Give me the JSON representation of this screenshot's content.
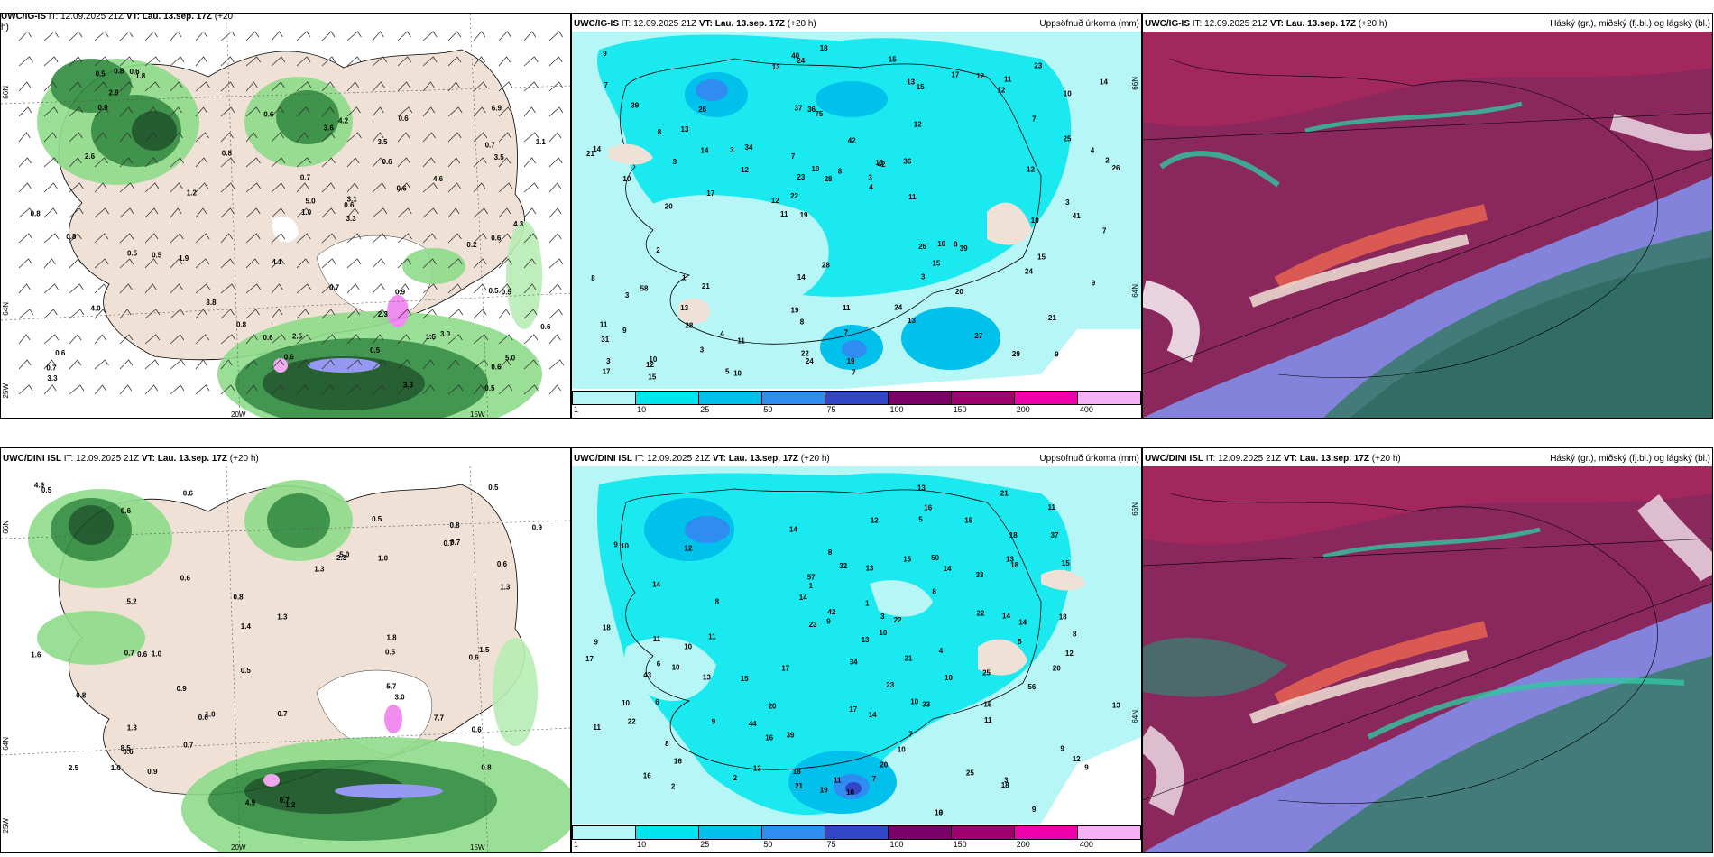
{
  "precip_panels": [
    {
      "model": "UWC/IG-IS",
      "it": "IT: 12.09.2025 21Z",
      "vt_label": "VT:",
      "vt": "Lau. 13.sep. 17Z",
      "lead": "(+20 h)",
      "right": "Uppsöfnuð úrkoma (mm)"
    },
    {
      "model": "UWC/DINI ISL",
      "it": "IT: 12.09.2025 21Z",
      "vt_label": "VT:",
      "vt": "Lau. 13.sep. 17Z",
      "lead": "(+20 h)",
      "right": "Uppsöfnuð úrkoma (mm)"
    }
  ],
  "cloud_panels": [
    {
      "model": "UWC/IG-IS",
      "it": "IT: 12.09.2025 21Z",
      "vt_label": "VT:",
      "vt": "Lau. 13.sep. 17Z",
      "lead": "(+20 h)",
      "right": "Háský (gr.), miðský (fj.bl.) og lágský (bl.)"
    },
    {
      "model": "UWC/DINI ISL",
      "it": "IT: 12.09.2025 21Z",
      "vt_label": "VT:",
      "vt": "Lau. 13.sep. 17Z",
      "lead": "(+20 h)",
      "right": "Háský (gr.), miðský (fj.bl.) og lágský (bl.)"
    }
  ],
  "wind_panels": [
    {
      "model": "UWC/IG-IS",
      "it": "IT: 12.09.2025 21Z",
      "vt_label": "VT:",
      "vt": "Lau. 13.sep. 17Z",
      "lead": "(+20",
      "lead2": "h)"
    },
    {
      "model": "UWC/DINI ISL",
      "it": "IT: 12.09.2025 21Z",
      "vt_label": "VT:",
      "vt": "Lau. 13.sep. 17Z",
      "lead": "(+20 h)"
    }
  ],
  "colorbar": {
    "ticks": [
      "1",
      "10",
      "25",
      "50",
      "75",
      "100",
      "150",
      "200",
      "400"
    ],
    "colors": [
      "#b7f6f6",
      "#00e6ee",
      "#00c0ec",
      "#2f8cf0",
      "#3346c8",
      "#7b0067",
      "#a0006f",
      "#ee00aa",
      "#f6b0f6"
    ]
  },
  "axis_labels": {
    "lat66": "66N",
    "lat64": "64N",
    "lon20": "20W",
    "lon15": "15W",
    "lon25": "25W"
  },
  "precip_top_values": [
    "9",
    "10",
    "10",
    "11",
    "12",
    "10",
    "37",
    "42",
    "58",
    "34",
    "31",
    "28",
    "36",
    "42",
    "39",
    "39",
    "24",
    "26",
    "26",
    "25",
    "22",
    "19",
    "23",
    "26",
    "17",
    "21",
    "29",
    "21",
    "8",
    "7",
    "3",
    "3",
    "3",
    "3",
    "4",
    "3",
    "3",
    "8",
    "4",
    "3",
    "7",
    "14",
    "15",
    "13",
    "13",
    "15",
    "17",
    "11",
    "11",
    "18",
    "17",
    "14",
    "13",
    "12",
    "12",
    "15",
    "13",
    "10",
    "9",
    "14",
    "11",
    "10",
    "14",
    "11",
    "9",
    "8",
    "7",
    "7",
    "7",
    "8",
    "9",
    "11",
    "15",
    "22",
    "12",
    "28",
    "27",
    "19",
    "24",
    "40",
    "41",
    "36",
    "20",
    "28",
    "24",
    "21",
    "24",
    "13",
    "15",
    "20",
    "5",
    "3",
    "2",
    "2",
    "1",
    "4",
    "13",
    "12",
    "12",
    "10",
    "7",
    "75",
    "12",
    "10",
    "8",
    "19",
    "23"
  ],
  "precip_bot_values": [
    "9",
    "10",
    "10",
    "10",
    "9",
    "14",
    "16",
    "15",
    "33",
    "32",
    "14",
    "18",
    "16",
    "14",
    "21",
    "22",
    "25",
    "13",
    "18",
    "16",
    "11",
    "13",
    "14",
    "13",
    "12",
    "11",
    "13",
    "34",
    "9",
    "37",
    "33",
    "43",
    "44",
    "50",
    "57",
    "56",
    "20",
    "25",
    "18",
    "10",
    "20",
    "14",
    "12",
    "13",
    "17",
    "10",
    "15",
    "16",
    "15",
    "17",
    "10",
    "18",
    "15",
    "14",
    "14",
    "17",
    "21",
    "42",
    "23",
    "22",
    "18",
    "13",
    "12",
    "12",
    "11",
    "10",
    "11",
    "10",
    "15",
    "18",
    "11",
    "11",
    "10",
    "9",
    "8",
    "8",
    "8",
    "7",
    "6",
    "5",
    "4",
    "3",
    "3",
    "2",
    "1",
    "2",
    "1",
    "39",
    "23",
    "21",
    "19",
    "20",
    "22",
    "9",
    "9",
    "8",
    "7",
    "6",
    "5",
    "8",
    "9",
    "12",
    "10",
    "9"
  ],
  "wind_top_values": [
    "4.0",
    "3.1",
    "0.5",
    "0.6",
    "4.2",
    "3.0",
    "0.7",
    "0.6",
    "0.5",
    "0.6",
    "1.8",
    "0.7",
    "0.6",
    "0.6",
    "0.5",
    "0.8",
    "0.5",
    "0.7",
    "0.6",
    "0.9",
    "0.5",
    "0.6",
    "1.2",
    "0.8",
    "0.6",
    "0.8",
    "1.5",
    "0.5",
    "0.9",
    "0.6",
    "0.6",
    "0.7",
    "5.0",
    "3.5",
    "3.3",
    "3.6",
    "3.8",
    "4.1",
    "2.9",
    "2.6",
    "3.5",
    "3.3",
    "1.0",
    "1.1",
    "1.9",
    "4.3",
    "3.3",
    "2.5",
    "2.3",
    "0.5",
    "0.6",
    "0.8",
    "0.2",
    "5.0",
    "0.6",
    "6.9",
    "4.6",
    "0.8"
  ],
  "wind_bot_values": [
    "2.5",
    "3.0",
    "5.0",
    "0.5",
    "0.8",
    "0.7",
    "0.6",
    "0.7",
    "1.3",
    "0.9",
    "0.6",
    "0.6",
    "0.8",
    "0.6",
    "0.5",
    "0.8",
    "1.0",
    "1.4",
    "0.7",
    "1.3",
    "1.0",
    "0.6",
    "1.8",
    "1.0",
    "0.5",
    "0.6",
    "0.7",
    "0.9",
    "0.5",
    "0.8",
    "0.7",
    "0.9",
    "0.6",
    "1.0",
    "1.2",
    "1.5",
    "5.2",
    "7.7",
    "4.9",
    "5.7",
    "8.5",
    "0.6",
    "1.3",
    "1.6",
    "1.3",
    "4.9",
    "2.3",
    "0.5",
    "0.7",
    "0.6"
  ]
}
